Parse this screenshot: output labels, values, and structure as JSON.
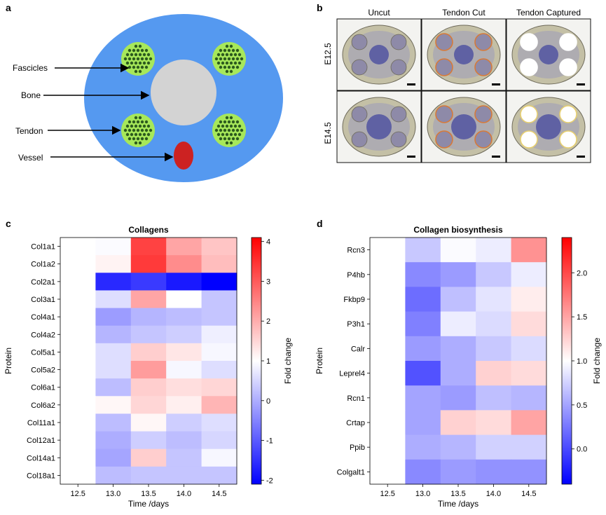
{
  "panels": {
    "a": {
      "letter": "a",
      "labels": [
        "Fascicles",
        "Bone",
        "Tendon",
        "Vessel"
      ],
      "colors": {
        "body": "#5599f0",
        "bone": "#d3d3d3",
        "tendon": "#a7e85a",
        "fascicle_dot": "#2c5a1e",
        "vessel": "#cc2222"
      }
    },
    "b": {
      "letter": "b",
      "columns": [
        "Uncut",
        "Tendon Cut",
        "Tendon Captured"
      ],
      "rows": [
        "E12.5",
        "E14.5"
      ]
    }
  },
  "chart_data": [
    {
      "type": "heatmap",
      "letter": "c",
      "title": "Collagens",
      "xlabel": "Time /days",
      "ylabel": "Protein",
      "x": [
        "12.5",
        "13.0",
        "13.5",
        "14.0",
        "14.5"
      ],
      "y": [
        "Col1a1",
        "Col1a2",
        "Col2a1",
        "Col3a1",
        "Col4a1",
        "Col4a2",
        "Col5a1",
        "Col5a2",
        "Col6a1",
        "Col6a2",
        "Col11a1",
        "Col12a1",
        "Col14a1",
        "Col18a1"
      ],
      "values": [
        [
          1.0,
          0.95,
          3.3,
          2.1,
          1.7
        ],
        [
          1.0,
          1.15,
          3.4,
          2.4,
          1.8
        ],
        [
          1.0,
          -1.6,
          -1.4,
          -1.8,
          -2.2
        ],
        [
          1.0,
          0.6,
          2.1,
          1.0,
          0.3
        ],
        [
          1.0,
          -0.2,
          0.1,
          0.2,
          0.3
        ],
        [
          1.0,
          0.1,
          0.3,
          0.4,
          0.8
        ],
        [
          1.0,
          0.6,
          1.6,
          1.3,
          0.9
        ],
        [
          1.0,
          0.6,
          2.2,
          0.9,
          0.6
        ],
        [
          1.0,
          0.2,
          1.6,
          1.4,
          1.5
        ],
        [
          1.0,
          1.1,
          1.5,
          1.2,
          1.9
        ],
        [
          1.0,
          0.2,
          1.1,
          0.4,
          0.6
        ],
        [
          1.0,
          0.0,
          0.4,
          0.2,
          0.5
        ],
        [
          1.0,
          -0.1,
          1.6,
          0.3,
          0.9
        ],
        [
          1.0,
          0.2,
          0.3,
          0.3,
          0.3
        ]
      ],
      "vmin": -2.1,
      "vmax": 4.1,
      "colorbar_label": "Fold change",
      "colorbar_ticks": [
        4,
        3,
        2,
        1,
        0,
        -1,
        -2
      ],
      "colorbar_tick_labels": [
        "4",
        "3",
        "2",
        "1",
        "0",
        "-1",
        "-2"
      ]
    },
    {
      "type": "heatmap",
      "letter": "d",
      "title": "Collagen biosynthesis",
      "xlabel": "Time /days",
      "ylabel": "Protein",
      "x": [
        "12.5",
        "13.0",
        "13.5",
        "14.0",
        "14.5"
      ],
      "y": [
        "Rcn3",
        "P4hb",
        "Fkbp9",
        "P3h1",
        "Calr",
        "Leprel4",
        "Rcn1",
        "Crtap",
        "Ppib",
        "Colgalt1"
      ],
      "values": [
        [
          1.0,
          0.7,
          0.98,
          0.9,
          1.6
        ],
        [
          1.0,
          0.35,
          0.45,
          0.7,
          0.9
        ],
        [
          1.0,
          0.2,
          0.65,
          0.85,
          1.1
        ],
        [
          1.0,
          0.3,
          0.9,
          0.8,
          1.2
        ],
        [
          1.0,
          0.45,
          0.55,
          0.7,
          0.8
        ],
        [
          1.0,
          0.05,
          0.55,
          1.25,
          1.2
        ],
        [
          1.0,
          0.5,
          0.45,
          0.65,
          0.6
        ],
        [
          1.0,
          0.5,
          1.25,
          1.2,
          1.5
        ],
        [
          1.0,
          0.55,
          0.6,
          0.75,
          0.75
        ],
        [
          1.0,
          0.35,
          0.45,
          0.4,
          0.4
        ]
      ],
      "vmin": -0.4,
      "vmax": 2.4,
      "colorbar_label": "Fold change",
      "colorbar_ticks": [
        2.0,
        1.5,
        1.0,
        0.5,
        0.0
      ],
      "colorbar_tick_labels": [
        "2.0",
        "1.5",
        "1.0",
        "0.5",
        "0.0"
      ]
    }
  ]
}
